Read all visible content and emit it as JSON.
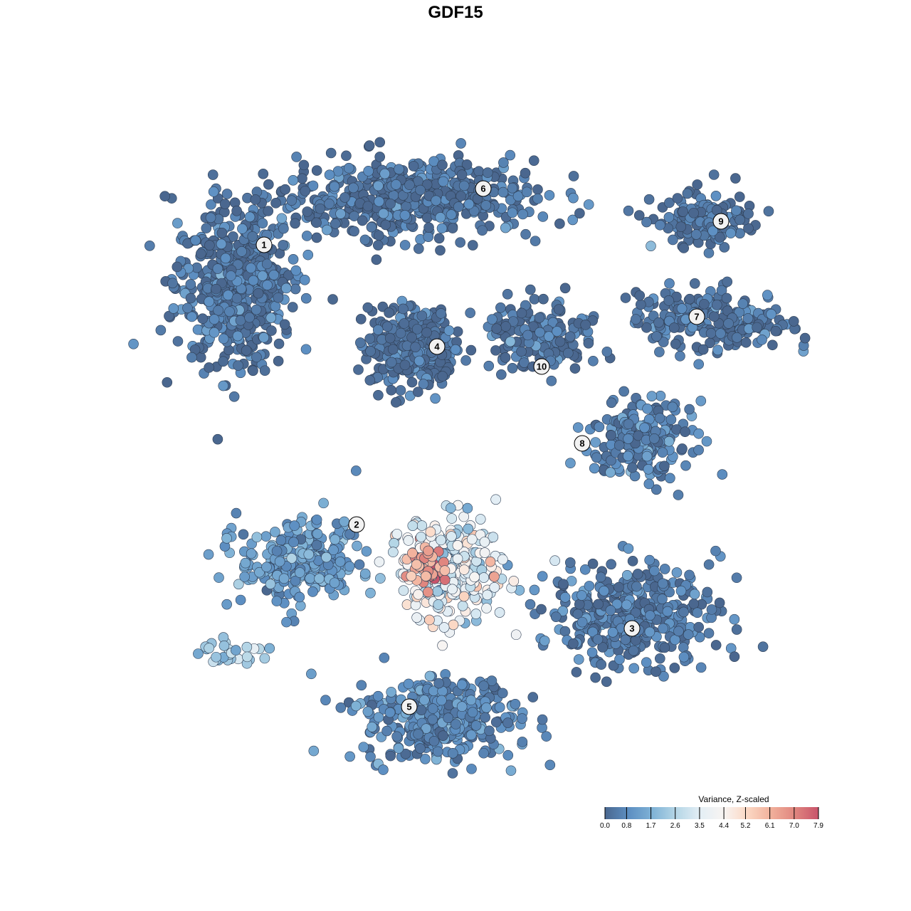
{
  "chart_data": {
    "type": "scatter",
    "title": "GDF15",
    "xlabel": "",
    "ylabel": "",
    "xlim": [
      -9,
      10
    ],
    "ylim": [
      -10,
      10
    ],
    "grid": false,
    "axes_visible": false,
    "legend": {
      "title": "Variance, Z-scaled",
      "placement": "bottom-right",
      "ticks": [
        "0.0",
        "0.8",
        "1.7",
        "2.6",
        "3.5",
        "4.4",
        "5.2",
        "6.1",
        "7.0",
        "7.9"
      ],
      "range": [
        0,
        7.9
      ],
      "colors": [
        "#4a678f",
        "#5d8fc2",
        "#7fb2d6",
        "#b5d6e6",
        "#e3eef5",
        "#f8f4f2",
        "#fbd8c4",
        "#f1b09b",
        "#e0867f",
        "#c8536a"
      ]
    },
    "note_points": "points summarised per cluster: center, spread, approx count, typical value",
    "clusters": [
      {
        "label": "1",
        "label_pos": [
          -5.38,
          5.92
        ],
        "center": [
          -6.2,
          4.8
        ],
        "spread": [
          1.4,
          1.8
        ],
        "n": 520,
        "value": 0.3
      },
      {
        "label": "6",
        "label_pos": [
          0.78,
          7.5
        ],
        "center": [
          -1.4,
          7.2
        ],
        "spread": [
          3.0,
          0.9
        ],
        "n": 520,
        "value": 0.2
      },
      {
        "label": "4",
        "label_pos": [
          -0.52,
          3.06
        ],
        "center": [
          -1.2,
          3.0
        ],
        "spread": [
          1.0,
          0.9
        ],
        "n": 360,
        "value": 0.2
      },
      {
        "label": "9",
        "label_pos": [
          7.46,
          6.58
        ],
        "center": [
          7.0,
          6.6
        ],
        "spread": [
          1.2,
          0.6
        ],
        "n": 130,
        "value": 0.2
      },
      {
        "label": "7",
        "label_pos": [
          6.78,
          3.9
        ],
        "center": [
          7.2,
          3.8
        ],
        "spread": [
          1.8,
          0.7
        ],
        "n": 220,
        "value": 0.3
      },
      {
        "label": "10",
        "label_pos": [
          2.42,
          2.5
        ],
        "center": [
          2.4,
          3.4
        ],
        "spread": [
          1.4,
          0.8
        ],
        "n": 160,
        "value": 0.2
      },
      {
        "label": "8",
        "label_pos": [
          3.56,
          0.34
        ],
        "center": [
          5.2,
          0.4
        ],
        "spread": [
          1.2,
          0.9
        ],
        "n": 190,
        "value": 0.6
      },
      {
        "label": "2",
        "label_pos": [
          -2.78,
          -1.94
        ],
        "center": [
          -4.4,
          -3.0
        ],
        "spread": [
          1.4,
          1.0
        ],
        "n": 260,
        "value": 1.2
      },
      {
        "label": "3",
        "label_pos": [
          4.96,
          -4.86
        ],
        "center": [
          5.0,
          -4.4
        ],
        "spread": [
          2.0,
          1.2
        ],
        "n": 360,
        "value": 0.4
      },
      {
        "label": "5",
        "label_pos": [
          -1.3,
          -7.06
        ],
        "center": [
          -0.4,
          -7.4
        ],
        "spread": [
          1.8,
          1.0
        ],
        "n": 360,
        "value": 0.8
      },
      {
        "label": "",
        "center": [
          -0.2,
          -3.2
        ],
        "spread": [
          1.4,
          1.2
        ],
        "n": 260,
        "value": 3.6
      },
      {
        "label": "",
        "center": [
          -0.8,
          -3.1
        ],
        "spread": [
          0.5,
          0.4
        ],
        "n": 45,
        "value": 6.5
      },
      {
        "label": "",
        "center": [
          -6.2,
          -5.5
        ],
        "spread": [
          1.0,
          0.3
        ],
        "n": 30,
        "value": 2.4
      }
    ]
  }
}
